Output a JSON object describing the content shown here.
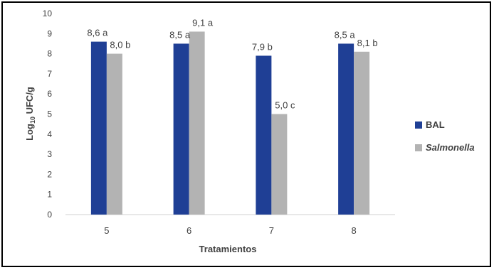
{
  "chart_data": {
    "type": "bar",
    "categories": [
      "5",
      "6",
      "7",
      "8"
    ],
    "series": [
      {
        "name": "BAL",
        "color": "#1f3f95",
        "values": [
          8.6,
          8.5,
          7.9,
          8.5
        ],
        "labels": [
          "8,6 a",
          "8,5 a",
          "7,9 b",
          "8,5 a"
        ]
      },
      {
        "name": "Salmonella",
        "color": "#b3b3b3",
        "values": [
          8.0,
          9.1,
          5.0,
          8.1
        ],
        "labels": [
          "8,0 b",
          "9,1 a",
          "5,0 c",
          "8,1 b"
        ]
      }
    ],
    "xlabel": "Tratamientos",
    "ylabel": "Log10 UFC/g",
    "ylim": [
      0,
      10
    ],
    "yticks": [
      "0",
      "1",
      "2",
      "3",
      "4",
      "5",
      "6",
      "7",
      "8",
      "9",
      "10"
    ],
    "grid": false,
    "legend": "right"
  }
}
